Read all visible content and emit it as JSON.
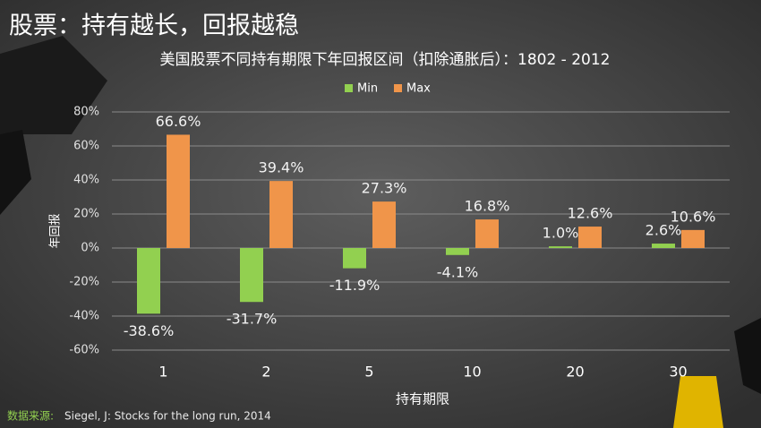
{
  "slide_title": "股票：持有越长，回报越稳",
  "source_label": "数据来源:",
  "source_text": "Siegel, J: Stocks for the long run, 2014",
  "chart_data": {
    "type": "bar",
    "title": "美国股票不同持有期限下年回报区间（扣除通胀后）：1802 - 2012",
    "x_label": "持有期限",
    "y_label": "年回报",
    "categories": [
      "1",
      "2",
      "5",
      "10",
      "20",
      "30"
    ],
    "series": [
      {
        "name": "Min",
        "color": "#92d050",
        "values": [
          -38.6,
          -31.7,
          -11.9,
          -4.1,
          1.0,
          2.6
        ],
        "value_labels": [
          "-38.6%",
          "-31.7%",
          "-11.9%",
          "-4.1%",
          "1.0%",
          "2.6%"
        ]
      },
      {
        "name": "Max",
        "color": "#f0954a",
        "values": [
          66.6,
          39.4,
          27.3,
          16.8,
          12.6,
          10.6
        ],
        "value_labels": [
          "66.6%",
          "39.4%",
          "27.3%",
          "16.8%",
          "12.6%",
          "10.6%"
        ]
      }
    ],
    "ylim": [
      -60,
      80
    ],
    "yticks": [
      {
        "value": -60,
        "label": "-60%"
      },
      {
        "value": -40,
        "label": "-40%"
      },
      {
        "value": -20,
        "label": "-20%"
      },
      {
        "value": 0,
        "label": "0%"
      },
      {
        "value": 20,
        "label": "20%"
      },
      {
        "value": 40,
        "label": "40%"
      },
      {
        "value": 60,
        "label": "60%"
      },
      {
        "value": 80,
        "label": "80%"
      }
    ],
    "grid": true,
    "legend": "top"
  }
}
